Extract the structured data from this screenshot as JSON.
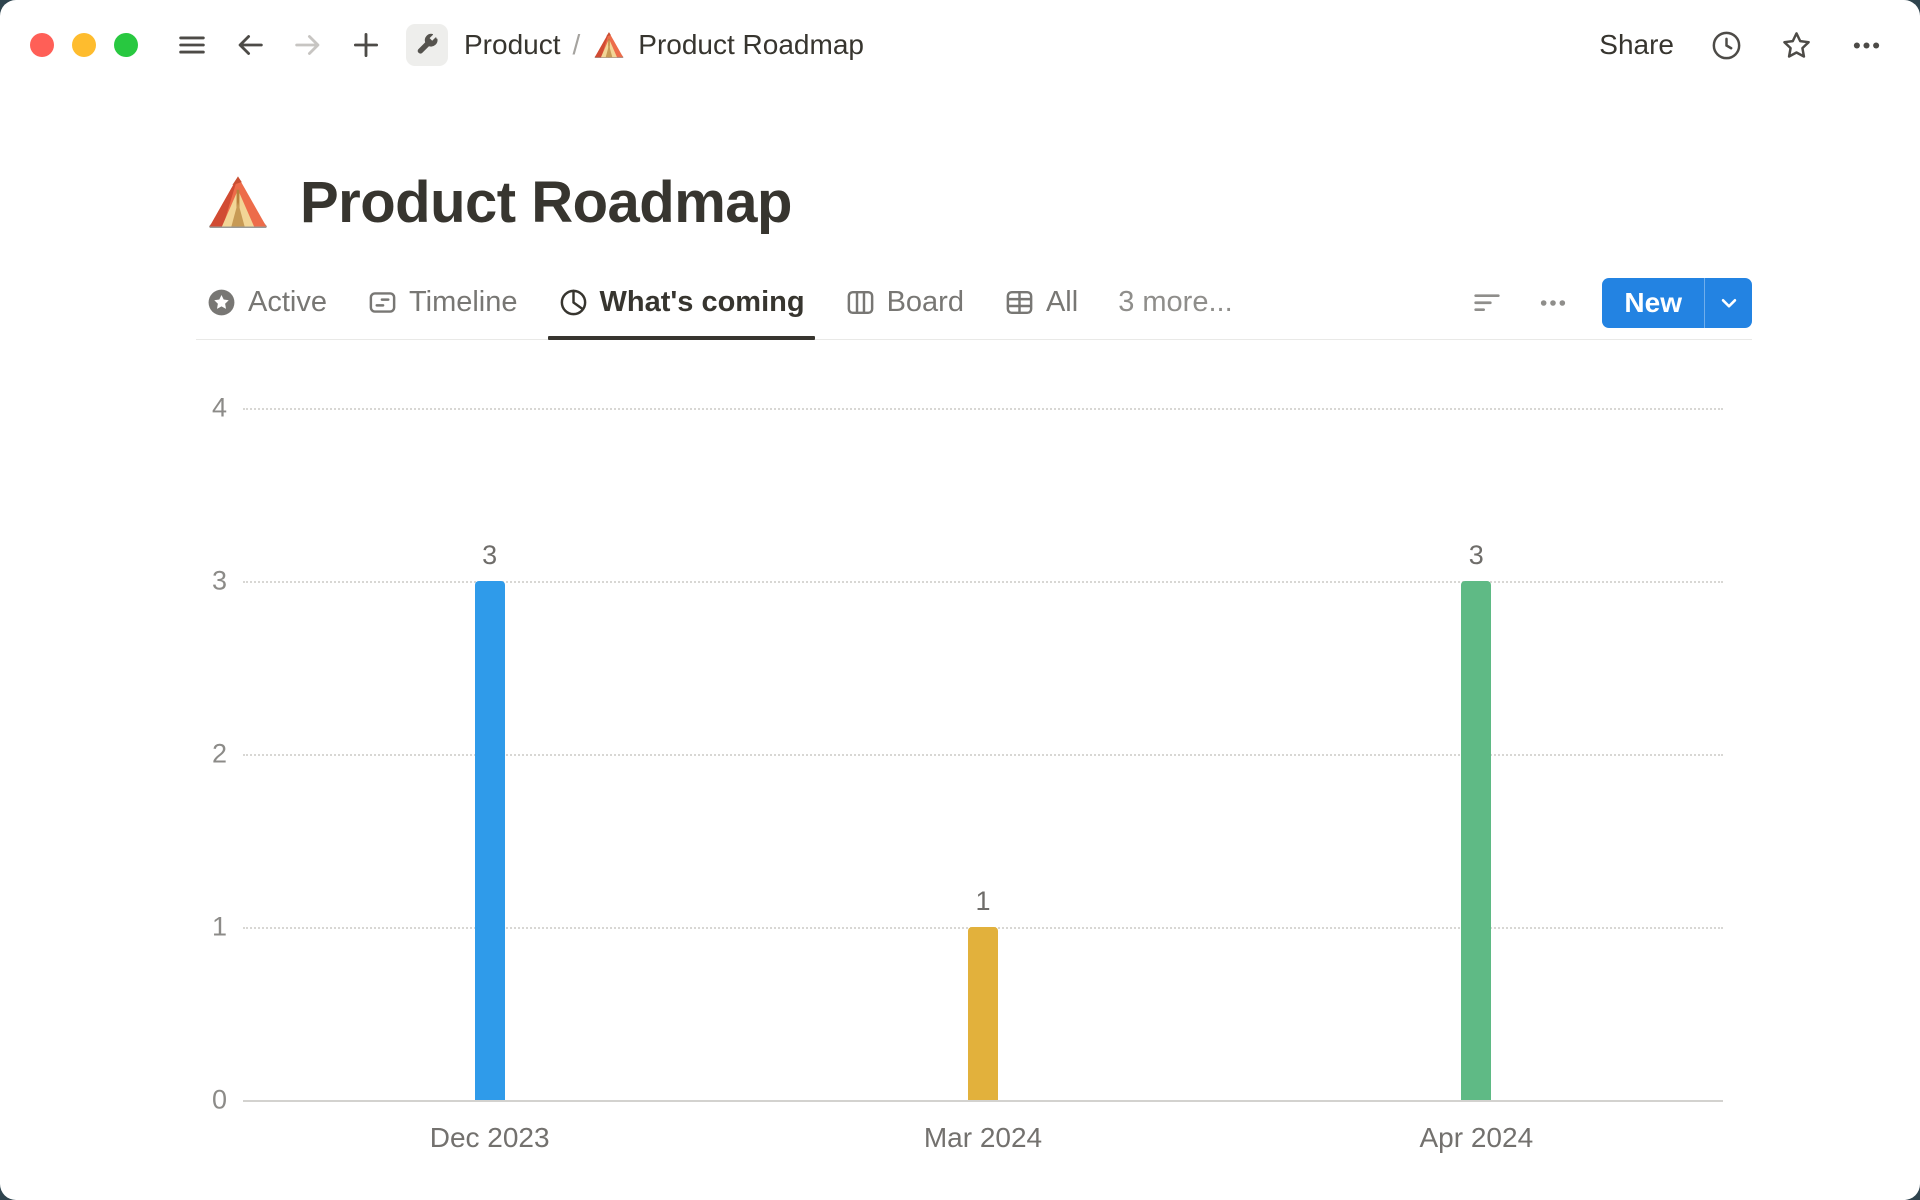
{
  "colors": {
    "backdrop": "#2F444E",
    "traffic_lights": [
      "#FF5F57",
      "#FEBC2E",
      "#28C840"
    ],
    "accent_blue": "#2383E2"
  },
  "topbar": {
    "traffic_lights": [
      "close",
      "minimize",
      "zoom"
    ],
    "nav_icons": [
      "hamburger-icon",
      "arrow-left-icon",
      "arrow-right-icon",
      "plus-icon"
    ],
    "workspace_icon": "wrench-icon",
    "breadcrumb": {
      "root": "Product",
      "separator": "/",
      "page_icon": "tent-emoji",
      "page_title": "Product Roadmap"
    },
    "share_label": "Share",
    "action_icons": [
      "clock-history-icon",
      "star-icon",
      "ellipsis-icon"
    ]
  },
  "page": {
    "icon": "tent-emoji",
    "title": "Product Roadmap"
  },
  "view_tabs": {
    "tabs": [
      {
        "label": "Active",
        "icon": "star-circle-icon",
        "selected": false
      },
      {
        "label": "Timeline",
        "icon": "timeline-icon",
        "selected": false
      },
      {
        "label": "What's coming",
        "icon": "pie-chart-icon",
        "selected": true
      },
      {
        "label": "Board",
        "icon": "board-icon",
        "selected": false
      },
      {
        "label": "All",
        "icon": "table-icon",
        "selected": false
      }
    ],
    "more_label": "3 more...",
    "toolbar_icons": [
      "filter-icon",
      "ellipsis-icon"
    ],
    "new_button": {
      "label": "New",
      "color": "#2383E2"
    }
  },
  "chart_data": {
    "type": "bar",
    "categories": [
      "Dec 2023",
      "Mar 2024",
      "Apr 2024"
    ],
    "values": [
      3,
      1,
      3
    ],
    "bar_colors": [
      "#2F9BEA",
      "#E2B13C",
      "#5FBA85"
    ],
    "value_labels": [
      "3",
      "1",
      "3"
    ],
    "title": "",
    "xlabel": "",
    "ylabel": "",
    "ylim": [
      0,
      4
    ],
    "yticks": [
      "0",
      "1",
      "2",
      "3",
      "4"
    ],
    "grid": "horizontal-dotted",
    "legend": "none"
  }
}
